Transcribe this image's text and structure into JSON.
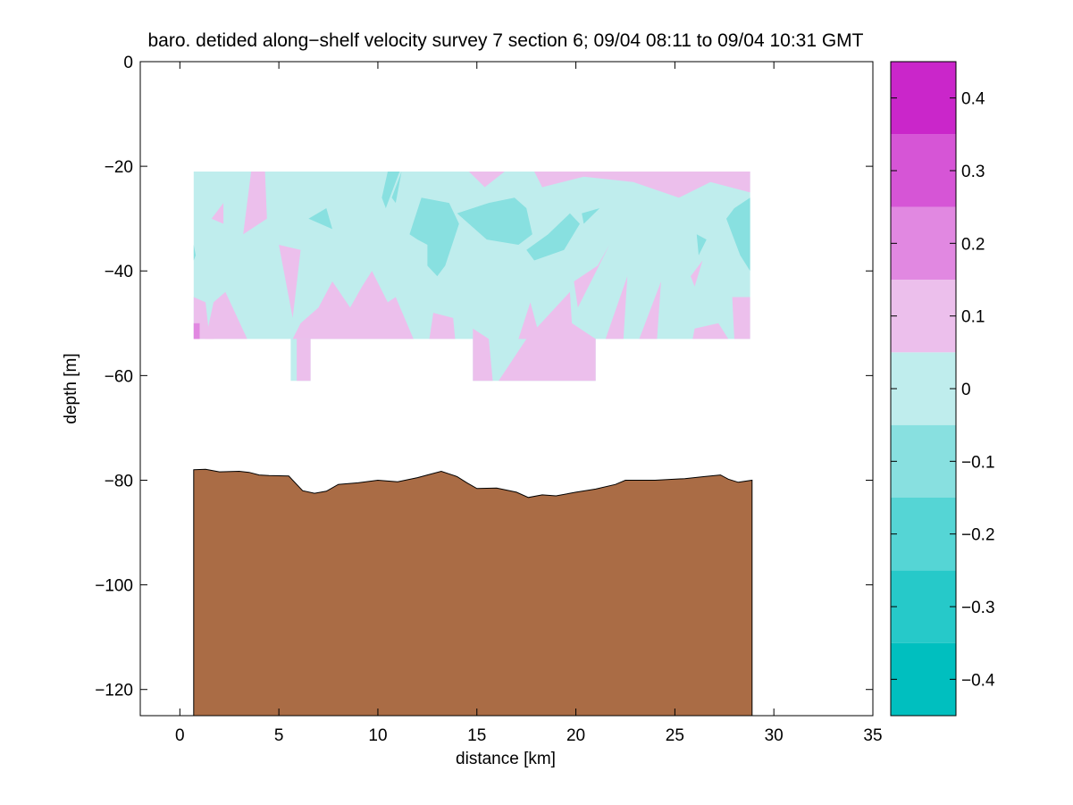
{
  "chart_data": {
    "type": "contour",
    "title": "baro. detided along−shelf velocity survey 7 section 6; 09/04 08:11 to 09/04 10:31 GMT",
    "xlabel": "distance [km]",
    "ylabel": "depth [m]",
    "xlim": [
      -2,
      35
    ],
    "ylim": [
      -125,
      0
    ],
    "xticks": [
      0,
      5,
      10,
      15,
      20,
      25,
      30,
      35
    ],
    "xtick_labels": [
      "0",
      "5",
      "10",
      "15",
      "20",
      "25",
      "30",
      "35"
    ],
    "yticks": [
      0,
      -20,
      -40,
      -60,
      -80,
      -100,
      -120
    ],
    "ytick_labels": [
      "0",
      "−20",
      "−40",
      "−60",
      "−80",
      "−100",
      "−120"
    ],
    "colorbar": {
      "range": [
        -0.45,
        0.45
      ],
      "levels": [
        -0.45,
        -0.35,
        -0.25,
        -0.15,
        -0.05,
        0.05,
        0.15,
        0.25,
        0.35,
        0.45
      ],
      "colors": [
        "#00bfbf",
        "#26c9c9",
        "#55d5d5",
        "#88e0e0",
        "#bfeded",
        "#ecbfec",
        "#e188e1",
        "#d655d6",
        "#ca26ca",
        "#bf00bf"
      ],
      "ticks": [
        -0.4,
        -0.3,
        -0.2,
        -0.1,
        0,
        0.1,
        0.2,
        0.3,
        0.4
      ],
      "tick_labels": [
        "−0.4",
        "−0.3",
        "−0.2",
        "−0.1",
        "0",
        "0.1",
        "0.2",
        "0.3",
        "0.4"
      ]
    },
    "data_region": {
      "x_range": [
        0.7,
        28.8
      ],
      "depth_range": [
        -53,
        -21
      ],
      "deep_gaps": [
        {
          "x": [
            5.6,
            6.6
          ],
          "depth": [
            -61,
            -53
          ]
        },
        {
          "x": [
            14.8,
            21.0
          ],
          "depth": [
            -61,
            -53
          ]
        }
      ],
      "background_level": [
        -0.15,
        -0.05
      ]
    },
    "positive_patches": [
      [
        [
          0.7,
          -45
        ],
        [
          1.3,
          -46
        ],
        [
          1.5,
          -53
        ],
        [
          0.7,
          -53
        ]
      ],
      [
        [
          1.0,
          -48
        ],
        [
          1.7,
          -53
        ],
        [
          1.3,
          -53
        ]
      ],
      [
        [
          1.3,
          -53
        ],
        [
          3.4,
          -53
        ],
        [
          2.3,
          -44
        ],
        [
          1.7,
          -46
        ]
      ],
      [
        [
          3.6,
          -21
        ],
        [
          4.3,
          -21
        ],
        [
          4.4,
          -30
        ],
        [
          3.2,
          -33
        ]
      ],
      [
        [
          5.0,
          -35
        ],
        [
          6.1,
          -36
        ],
        [
          5.7,
          -49
        ]
      ],
      [
        [
          5.7,
          -53
        ],
        [
          6.1,
          -50
        ],
        [
          7.0,
          -47
        ],
        [
          7.7,
          -42
        ],
        [
          8.6,
          -47
        ],
        [
          9.2,
          -43
        ],
        [
          9.7,
          -40
        ],
        [
          10.5,
          -46
        ],
        [
          10.9,
          -45
        ],
        [
          11.8,
          -53
        ]
      ],
      [
        [
          5.9,
          -53
        ],
        [
          6.6,
          -53
        ],
        [
          6.6,
          -61
        ],
        [
          5.9,
          -61
        ]
      ],
      [
        [
          12.8,
          -48
        ],
        [
          13.8,
          -49
        ],
        [
          13.9,
          -53
        ],
        [
          12.6,
          -53
        ]
      ],
      [
        [
          14.6,
          -21
        ],
        [
          16.4,
          -21
        ],
        [
          15.4,
          -24
        ]
      ],
      [
        [
          17.9,
          -21
        ],
        [
          28.8,
          -21
        ],
        [
          28.8,
          -25
        ],
        [
          26.8,
          -23
        ],
        [
          25.2,
          -26
        ],
        [
          22.9,
          -23
        ],
        [
          20.4,
          -22
        ],
        [
          18.3,
          -24
        ]
      ],
      [
        [
          14.8,
          -61
        ],
        [
          14.8,
          -51
        ],
        [
          15.6,
          -53
        ],
        [
          15.8,
          -61
        ]
      ],
      [
        [
          16.1,
          -61
        ],
        [
          17.5,
          -53
        ],
        [
          19.7,
          -44
        ],
        [
          19.8,
          -50
        ],
        [
          21.0,
          -53
        ],
        [
          21.0,
          -61
        ]
      ],
      [
        [
          17.1,
          -53
        ],
        [
          17.7,
          -46
        ],
        [
          18.2,
          -53
        ]
      ],
      [
        [
          19.9,
          -42
        ],
        [
          21.1,
          -39
        ],
        [
          21.7,
          -35
        ],
        [
          20.1,
          -47
        ]
      ],
      [
        [
          21.5,
          -53
        ],
        [
          22.6,
          -41
        ],
        [
          22.4,
          -53
        ]
      ],
      [
        [
          23.8,
          -47
        ],
        [
          24.3,
          -42
        ],
        [
          24.1,
          -53
        ],
        [
          23.2,
          -53
        ]
      ],
      [
        [
          26.0,
          -43
        ],
        [
          26.4,
          -38
        ],
        [
          25.8,
          -41
        ]
      ],
      [
        [
          25.9,
          -53
        ],
        [
          26.0,
          -51
        ],
        [
          27.2,
          -50
        ],
        [
          27.7,
          -53
        ]
      ],
      [
        [
          28.0,
          -53
        ],
        [
          27.9,
          -45
        ],
        [
          28.8,
          -45
        ],
        [
          28.8,
          -53
        ]
      ],
      [
        [
          1.6,
          -30
        ],
        [
          2.2,
          -27
        ],
        [
          2.2,
          -31
        ]
      ]
    ],
    "negative_patches": [
      [
        [
          10.5,
          -21
        ],
        [
          11.1,
          -21
        ],
        [
          10.4,
          -28
        ],
        [
          10.2,
          -26
        ]
      ],
      [
        [
          10.7,
          -26
        ],
        [
          11.2,
          -21
        ],
        [
          10.9,
          -27
        ]
      ],
      [
        [
          11.6,
          -33
        ],
        [
          12.2,
          -26
        ],
        [
          13.6,
          -27
        ],
        [
          14.1,
          -31
        ],
        [
          13.4,
          -39
        ],
        [
          13.0,
          -41
        ],
        [
          12.5,
          -39
        ],
        [
          12.5,
          -35
        ],
        [
          12.0,
          -34
        ]
      ],
      [
        [
          14.0,
          -29
        ],
        [
          15.6,
          -27
        ],
        [
          16.9,
          -26
        ],
        [
          17.5,
          -28
        ],
        [
          17.8,
          -33
        ],
        [
          17.1,
          -35
        ],
        [
          15.5,
          -34
        ]
      ],
      [
        [
          17.5,
          -36
        ],
        [
          18.6,
          -33
        ],
        [
          19.7,
          -29
        ],
        [
          20.2,
          -31
        ],
        [
          19.4,
          -36
        ],
        [
          17.9,
          -38
        ]
      ],
      [
        [
          20.3,
          -29
        ],
        [
          21.2,
          -28
        ],
        [
          20.4,
          -31
        ]
      ],
      [
        [
          6.5,
          -30
        ],
        [
          7.4,
          -28
        ],
        [
          7.7,
          -32
        ]
      ],
      [
        [
          27.6,
          -30
        ],
        [
          28.0,
          -28
        ],
        [
          28.8,
          -26
        ],
        [
          28.8,
          -40
        ],
        [
          28.3,
          -37
        ],
        [
          27.9,
          -33
        ]
      ],
      [
        [
          0.7,
          -35
        ],
        [
          0.8,
          -37
        ],
        [
          0.7,
          -38
        ]
      ],
      [
        [
          26.1,
          -33
        ],
        [
          26.6,
          -34
        ],
        [
          26.2,
          -37
        ]
      ]
    ],
    "strong_positive_patches": [
      [
        [
          0.7,
          -50
        ],
        [
          1.0,
          -50
        ],
        [
          1.0,
          -53
        ],
        [
          0.7,
          -53
        ]
      ]
    ],
    "seabed": {
      "color": "#aa6c45",
      "profile": [
        [
          0.7,
          -78
        ],
        [
          1.3,
          -77.9
        ],
        [
          2.0,
          -78.4
        ],
        [
          3.0,
          -78.3
        ],
        [
          3.5,
          -78.5
        ],
        [
          4.0,
          -79.0
        ],
        [
          4.5,
          -79.1
        ],
        [
          5.5,
          -79.2
        ],
        [
          6.2,
          -82.0
        ],
        [
          6.8,
          -82.5
        ],
        [
          7.4,
          -82.1
        ],
        [
          8.0,
          -80.8
        ],
        [
          9.0,
          -80.5
        ],
        [
          10.0,
          -80.0
        ],
        [
          11.0,
          -80.3
        ],
        [
          12.0,
          -79.5
        ],
        [
          12.5,
          -79.0
        ],
        [
          13.2,
          -78.3
        ],
        [
          14.0,
          -79.3
        ],
        [
          14.5,
          -80.5
        ],
        [
          15.0,
          -81.6
        ],
        [
          16.0,
          -81.5
        ],
        [
          17.0,
          -82.3
        ],
        [
          17.6,
          -83.3
        ],
        [
          18.3,
          -82.8
        ],
        [
          19.0,
          -83.0
        ],
        [
          20.0,
          -82.3
        ],
        [
          21.0,
          -81.7
        ],
        [
          22.0,
          -80.8
        ],
        [
          22.5,
          -80.0
        ],
        [
          24.0,
          -80.0
        ],
        [
          25.5,
          -79.7
        ],
        [
          26.5,
          -79.3
        ],
        [
          27.3,
          -79.0
        ],
        [
          27.7,
          -79.8
        ],
        [
          28.2,
          -80.4
        ],
        [
          28.9,
          -80.0
        ]
      ]
    },
    "grid": false,
    "legend": "colorbar-right"
  }
}
